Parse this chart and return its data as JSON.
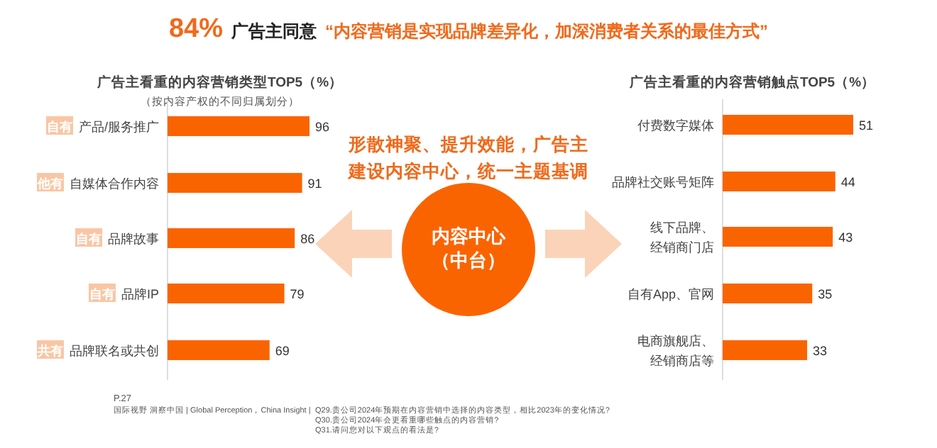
{
  "chart_data": [
    {
      "type": "other",
      "title": "84% 广告主同意 “内容营销是实现品牌差异化，加深消费者关系的最佳方式”",
      "annotations": [
        "形散神聚、提升效能，广告主建设内容中心，统一主题基调",
        "内容中心（中台）",
        "P.27",
        "国际视野 洞察中国 | Global Perception，China Insight |",
        "Q29.贵公司2024年预期在内容营销中选择的内容类型，相比2023年的变化情况?\nQ30.贵公司2024年会更看重哪些触点的内容营销?\nQ31.请问您对以下观点的看法是?"
      ]
    },
    {
      "type": "bar",
      "orientation": "horizontal",
      "title": "广告主看重的内容营销类型TOP5（%）",
      "subtitle": "（按内容产权的不同归属划分）",
      "categories": [
        "产品/服务推广",
        "自媒体合作内容",
        "品牌故事",
        "品牌IP",
        "品牌联名或共创"
      ],
      "values": [
        96,
        91,
        86,
        79,
        69
      ],
      "color": "#fa6400",
      "data_labels": true,
      "annotations": [
        "自有",
        "他有",
        "自有",
        "自有",
        "共有"
      ]
    },
    {
      "type": "bar",
      "orientation": "horizontal",
      "title": "广告主看重的内容营销触点TOP5（%）",
      "categories": [
        "付费数字媒体",
        "品牌社交账号矩阵",
        "线下品牌、经销商门店",
        "自有App、官网",
        "电商旗舰店、经销商店等"
      ],
      "values": [
        51,
        44,
        43,
        35,
        33
      ],
      "color": "#fa6400",
      "data_labels": true
    }
  ]
}
